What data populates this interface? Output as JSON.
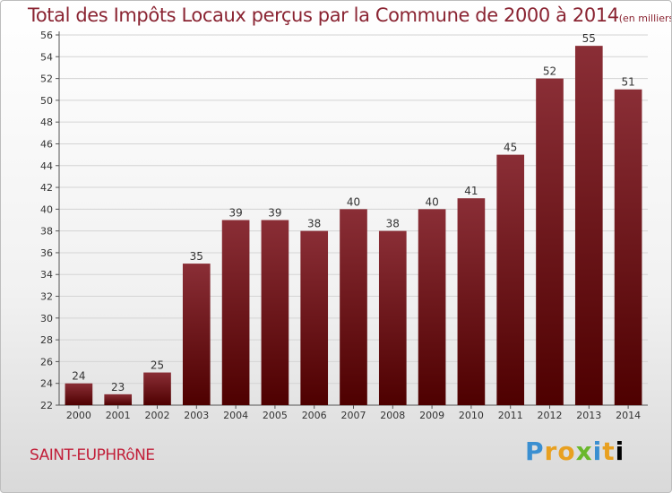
{
  "header": {
    "title": "Total des Impôts Locaux perçus par la Commune de 2000 à 2014",
    "unit": "(en milliers d'€)"
  },
  "footer": {
    "commune": "SAINT-EUPHRôNE",
    "logo_letters": [
      "P",
      "r",
      "o",
      "x",
      "i",
      "t",
      "i"
    ]
  },
  "colors": {
    "bar_top": "#8a2e36",
    "bar_bottom": "#4e0000",
    "title": "#8a2432",
    "commune": "#c2203a",
    "grid": "#d4d4d4"
  },
  "chart_data": {
    "type": "bar",
    "title": "Total des Impôts Locaux perçus par la Commune de 2000 à 2014",
    "unit": "(en milliers d'€)",
    "xlabel": "",
    "ylabel": "",
    "categories": [
      "2000",
      "2001",
      "2002",
      "2003",
      "2004",
      "2005",
      "2006",
      "2007",
      "2008",
      "2009",
      "2010",
      "2011",
      "2012",
      "2013",
      "2014"
    ],
    "values": [
      24,
      23,
      25,
      35,
      39,
      39,
      38,
      40,
      38,
      40,
      41,
      45,
      52,
      55,
      51
    ],
    "ylim": [
      22,
      56
    ],
    "yticks": [
      22,
      24,
      26,
      28,
      30,
      32,
      34,
      36,
      38,
      40,
      42,
      44,
      46,
      48,
      50,
      52,
      54,
      56
    ],
    "grid": true,
    "legend": "none"
  }
}
